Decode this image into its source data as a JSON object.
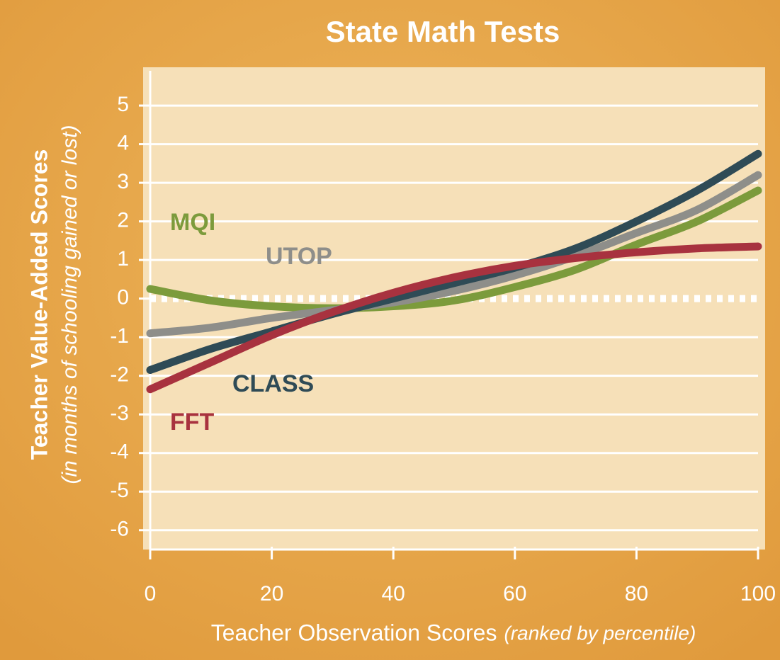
{
  "chart_data": {
    "type": "line",
    "title": "State Math Tests",
    "y_label": "Teacher Value-Added Scores",
    "y_label_note": "(in months of schooling gained or lost)",
    "x_label": "Teacher Observation Scores",
    "x_label_note": "(ranked by percentile)",
    "x": [
      0,
      10,
      20,
      30,
      40,
      50,
      60,
      70,
      80,
      90,
      100
    ],
    "series": [
      {
        "name": "MQI",
        "color": "#7c9b3c",
        "values": [
          0.25,
          -0.05,
          -0.2,
          -0.25,
          -0.2,
          -0.05,
          0.3,
          0.75,
          1.4,
          2.0,
          2.8
        ]
      },
      {
        "name": "UTOP",
        "color": "#8e8e8a",
        "values": [
          -0.9,
          -0.75,
          -0.5,
          -0.3,
          -0.1,
          0.2,
          0.6,
          1.1,
          1.7,
          2.3,
          3.2
        ]
      },
      {
        "name": "CLASS",
        "color": "#2f4b56",
        "values": [
          -1.85,
          -1.3,
          -0.85,
          -0.4,
          0,
          0.4,
          0.8,
          1.3,
          2.0,
          2.8,
          3.75
        ]
      },
      {
        "name": "FFT",
        "color": "#a8323f",
        "values": [
          -2.35,
          -1.65,
          -0.95,
          -0.35,
          0.15,
          0.55,
          0.85,
          1.05,
          1.2,
          1.3,
          1.35
        ]
      }
    ],
    "xlim": [
      0,
      100
    ],
    "xticks": [
      0,
      20,
      40,
      60,
      80,
      100
    ],
    "ylim": [
      -6.5,
      5.9
    ],
    "yticks": [
      5,
      4,
      3,
      2,
      1,
      0,
      -1,
      -2,
      -3,
      -4,
      -5,
      -6
    ],
    "grid": true
  }
}
